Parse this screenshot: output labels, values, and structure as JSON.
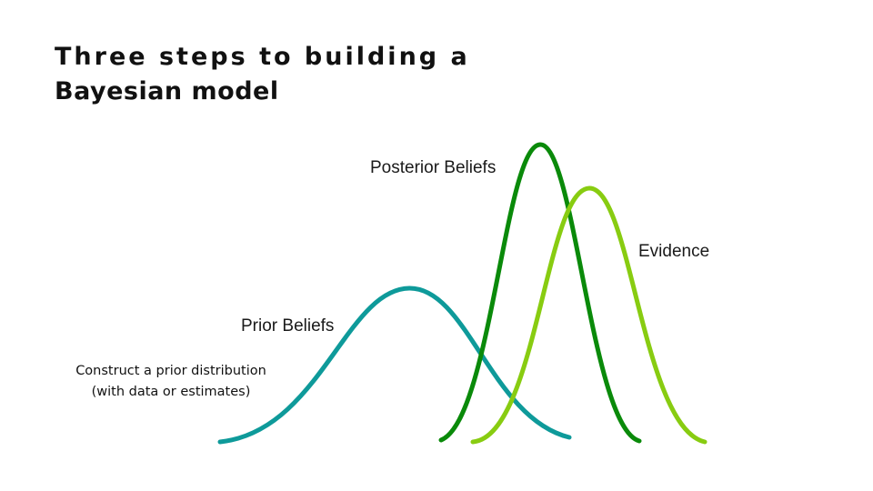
{
  "title": {
    "line1": "Three steps to building a",
    "line2": "Bayesian model"
  },
  "caption": {
    "line1": "Construct a prior distribution",
    "line2": "(with data or estimates)"
  },
  "curves": {
    "prior": {
      "label": "Prior Beliefs",
      "color": "#0e9a9a"
    },
    "posterior": {
      "label": "Posterior Beliefs",
      "color": "#0a8a0a"
    },
    "evidence": {
      "label": "Evidence",
      "color": "#88cc11"
    }
  }
}
